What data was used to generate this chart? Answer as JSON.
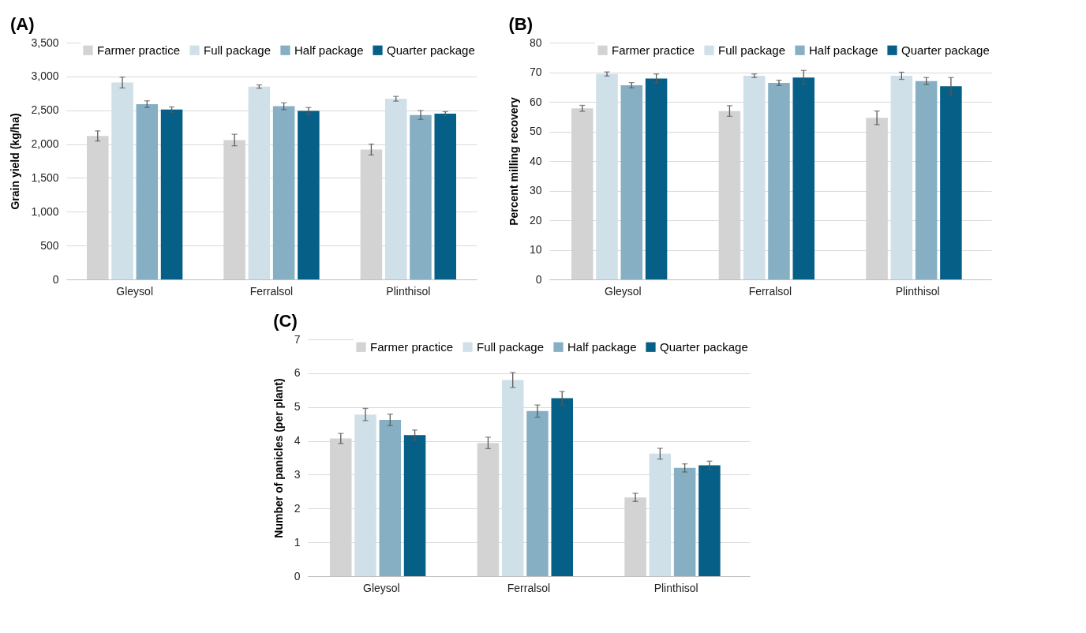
{
  "chart_data": [
    {
      "type": "bar",
      "title": "(A)",
      "ylabel": "Grain yield (kg/ha)",
      "categories": [
        "Gleysol",
        "Ferralsol",
        "Plinthisol"
      ],
      "ylim": [
        0,
        3500
      ],
      "yticks": [
        0,
        {
          "value": 500,
          "label": "500"
        },
        {
          "value": 1000,
          "label": "1,000"
        },
        {
          "value": 1500,
          "label": "1,500"
        },
        {
          "value": 2000,
          "label": "2,000"
        },
        {
          "value": 2500,
          "label": "2,500"
        },
        {
          "value": 3000,
          "label": "3,000"
        },
        {
          "value": 3500,
          "label": "3,500"
        }
      ],
      "grid": "y",
      "legend": "top right",
      "series": [
        {
          "name": "Farmer practice",
          "color": "#d3d3d3",
          "values": [
            2120,
            2060,
            1920
          ],
          "errors": [
            75,
            85,
            80
          ]
        },
        {
          "name": "Full package",
          "color": "#cfe0e8",
          "values": [
            2910,
            2850,
            2670
          ],
          "errors": [
            80,
            25,
            35
          ]
        },
        {
          "name": "Half package",
          "color": "#86afc4",
          "values": [
            2590,
            2560,
            2430
          ],
          "errors": [
            50,
            50,
            65
          ]
        },
        {
          "name": "Quarter package",
          "color": "#055f87",
          "values": [
            2510,
            2490,
            2450
          ],
          "errors": [
            40,
            50,
            30
          ]
        }
      ]
    },
    {
      "type": "bar",
      "title": "(B)",
      "ylabel": "Percent milling recovery",
      "categories": [
        "Gleysol",
        "Ferralsol",
        "Plinthisol"
      ],
      "ylim": [
        0,
        80
      ],
      "yticks": [
        0,
        10,
        20,
        30,
        40,
        50,
        60,
        70,
        80
      ],
      "grid": "y",
      "legend": "top right",
      "series": [
        {
          "name": "Farmer practice",
          "color": "#d3d3d3",
          "values": [
            57.8,
            56.9,
            54.6
          ],
          "errors": [
            1,
            1.8,
            2.3
          ]
        },
        {
          "name": "Full package",
          "color": "#cfe0e8",
          "values": [
            69.4,
            68.8,
            68.8
          ],
          "errors": [
            0.7,
            0.6,
            1.2
          ]
        },
        {
          "name": "Half package",
          "color": "#86afc4",
          "values": [
            65.6,
            66.4,
            67.0
          ],
          "errors": [
            0.9,
            0.9,
            1.2
          ]
        },
        {
          "name": "Quarter package",
          "color": "#055f87",
          "values": [
            67.9,
            68.2,
            65.3
          ],
          "errors": [
            1.5,
            2.4,
            2.9
          ]
        }
      ]
    },
    {
      "type": "bar",
      "title": "(C)",
      "ylabel": "Number of panicles (per plant)",
      "categories": [
        "Gleysol",
        "Ferralsol",
        "Plinthisol"
      ],
      "ylim": [
        0,
        7
      ],
      "yticks": [
        0,
        1,
        2,
        3,
        4,
        5,
        6,
        7
      ],
      "grid": "y",
      "legend": "top right",
      "series": [
        {
          "name": "Farmer practice",
          "color": "#d3d3d3",
          "values": [
            4.07,
            3.94,
            2.33
          ],
          "errors": [
            0.15,
            0.17,
            0.12
          ]
        },
        {
          "name": "Full package",
          "color": "#cfe0e8",
          "values": [
            4.78,
            5.8,
            3.62
          ],
          "errors": [
            0.18,
            0.22,
            0.16
          ]
        },
        {
          "name": "Half package",
          "color": "#86afc4",
          "values": [
            4.62,
            4.88,
            3.2
          ],
          "errors": [
            0.17,
            0.18,
            0.12
          ]
        },
        {
          "name": "Quarter package",
          "color": "#055f87",
          "values": [
            4.17,
            5.26,
            3.28
          ],
          "errors": [
            0.15,
            0.2,
            0.12
          ]
        }
      ]
    }
  ]
}
